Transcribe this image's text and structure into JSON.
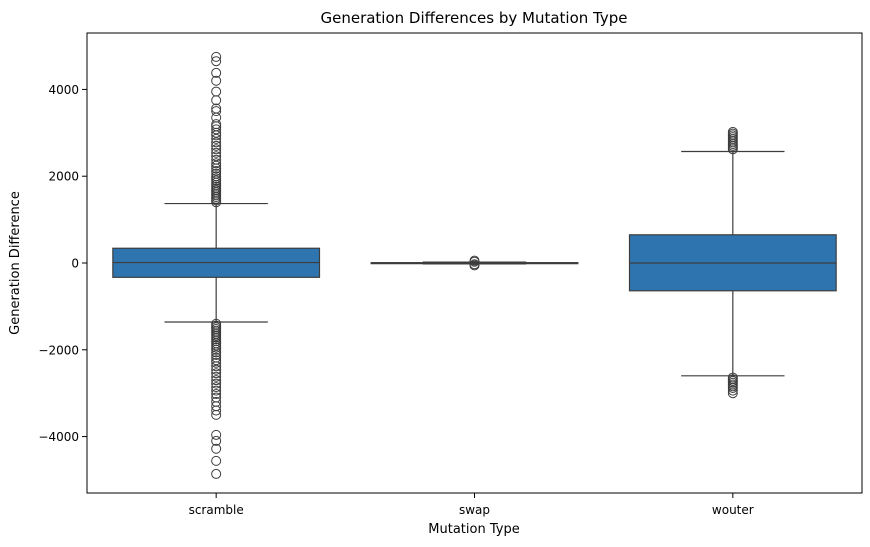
{
  "chart_data": {
    "type": "box",
    "title": "Generation Differences by Mutation Type",
    "xlabel": "Mutation Type",
    "ylabel": "Generation Difference",
    "categories": [
      "scramble",
      "swap",
      "wouter"
    ],
    "ylim": [
      -5300,
      5300
    ],
    "yticks": [
      -4000,
      -2000,
      0,
      2000,
      4000
    ],
    "ytick_labels": [
      "−4000",
      "−2000",
      "0",
      "2000",
      "4000"
    ],
    "grid": false,
    "legend": "none",
    "box_color": "#2e75b0",
    "line_color": "#3d3d3d",
    "boxes": [
      {
        "category": "scramble",
        "whisker_low": -1360,
        "q1": -330,
        "median": 10,
        "q3": 340,
        "whisker_high": 1370,
        "outliers": [
          1400,
          1440,
          1480,
          1520,
          1560,
          1600,
          1640,
          1680,
          1720,
          1760,
          1800,
          1850,
          1900,
          1950,
          2000,
          2060,
          2120,
          2180,
          2240,
          2300,
          2380,
          2460,
          2540,
          2620,
          2700,
          2780,
          2860,
          2940,
          3000,
          3080,
          3150,
          3200,
          3350,
          3500,
          3560,
          3750,
          3950,
          4200,
          4380,
          4650,
          4750,
          -1400,
          -1440,
          -1480,
          -1520,
          -1560,
          -1600,
          -1640,
          -1680,
          -1720,
          -1760,
          -1800,
          -1850,
          -1900,
          -1950,
          -2000,
          -2060,
          -2120,
          -2180,
          -2240,
          -2300,
          -2380,
          -2460,
          -2540,
          -2620,
          -2700,
          -2780,
          -2860,
          -2940,
          -3020,
          -3100,
          -3200,
          -3300,
          -3400,
          -3500,
          -3960,
          -4100,
          -4280,
          -4560,
          -4860
        ]
      },
      {
        "category": "swap",
        "whisker_low": -20,
        "q1": -8,
        "median": 0,
        "q3": 8,
        "whisker_high": 20,
        "outliers": [
          30,
          55,
          -30,
          -55
        ]
      },
      {
        "category": "wouter",
        "whisker_low": -2600,
        "q1": -640,
        "median": 0,
        "q3": 650,
        "whisker_high": 2570,
        "outliers": [
          2620,
          2660,
          2700,
          2740,
          2780,
          2820,
          2860,
          2900,
          2940,
          2980,
          3020,
          -2640,
          -2680,
          -2720,
          -2760,
          -2800,
          -2840,
          -2880,
          -2940,
          -3000
        ]
      }
    ]
  }
}
